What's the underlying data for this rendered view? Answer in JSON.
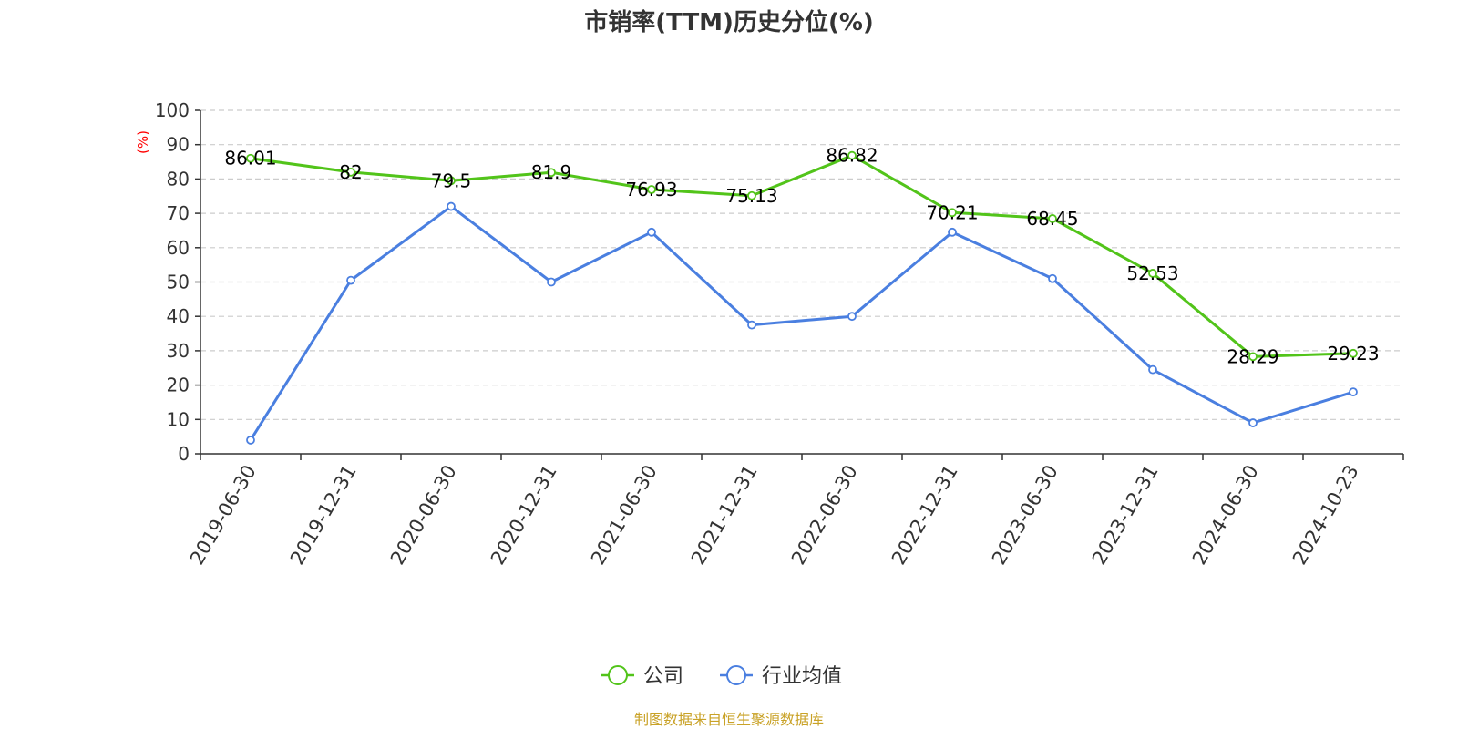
{
  "chart_data": {
    "type": "line",
    "title": "市销率(TTM)历史分位(%)",
    "ylabel": "(%)",
    "xlabel": "",
    "ylim": [
      0,
      100
    ],
    "yticks": [
      0,
      10,
      20,
      30,
      40,
      50,
      60,
      70,
      80,
      90,
      100
    ],
    "categories": [
      "2019-06-30",
      "2019-12-31",
      "2020-06-30",
      "2020-12-31",
      "2021-06-30",
      "2021-12-31",
      "2022-06-30",
      "2022-12-31",
      "2023-06-30",
      "2023-12-31",
      "2024-06-30",
      "2024-10-23"
    ],
    "series": [
      {
        "name": "公司",
        "color": "#52c41a",
        "values": [
          86.01,
          82,
          79.5,
          81.9,
          76.93,
          75.13,
          86.82,
          70.21,
          68.45,
          52.53,
          28.29,
          29.23
        ],
        "show_labels": true
      },
      {
        "name": "行业均值",
        "color": "#4a7fe0",
        "values": [
          4,
          50.5,
          72,
          50,
          64.5,
          37.5,
          40,
          64.5,
          51,
          24.5,
          9,
          18
        ],
        "show_labels": false
      }
    ],
    "grid": "horizontal-dashed",
    "legend_position": "bottom-center"
  },
  "source": "制图数据来自恒生聚源数据库"
}
